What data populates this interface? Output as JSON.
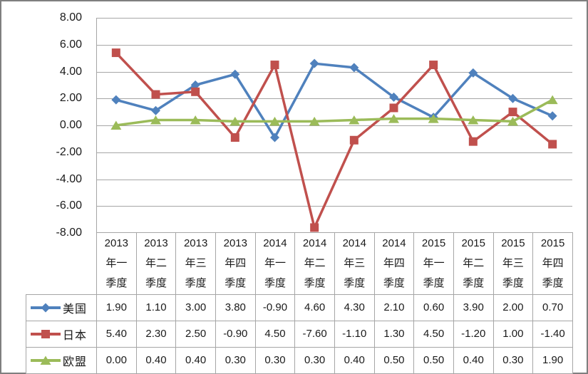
{
  "chart_data": {
    "type": "line",
    "title": "",
    "categories": [
      "2013年一季度",
      "2013年二季度",
      "2013年三季度",
      "2013年四季度",
      "2014年一季度",
      "2014年二季度",
      "2014年三季度",
      "2014年四季度",
      "2015年一季度",
      "2015年二季度",
      "2015年三季度",
      "2015年四季度"
    ],
    "series": [
      {
        "name": "美国",
        "marker": "diamond",
        "color": "#4F81BD",
        "values": [
          1.9,
          1.1,
          3.0,
          3.8,
          -0.9,
          4.6,
          4.3,
          2.1,
          0.6,
          3.9,
          2.0,
          0.7
        ]
      },
      {
        "name": "日本",
        "marker": "square",
        "color": "#C0504D",
        "values": [
          5.4,
          2.3,
          2.5,
          -0.9,
          4.5,
          -7.6,
          -1.1,
          1.3,
          4.5,
          -1.2,
          1.0,
          -1.4
        ]
      },
      {
        "name": "欧盟",
        "marker": "triangle",
        "color": "#9BBB59",
        "values": [
          0.0,
          0.4,
          0.4,
          0.3,
          0.3,
          0.3,
          0.4,
          0.5,
          0.5,
          0.4,
          0.3,
          1.9
        ]
      }
    ],
    "ylim": [
      -8,
      8
    ],
    "yticks": [
      8,
      6,
      4,
      2,
      0,
      -2,
      -4,
      -6,
      -8
    ],
    "ytick_format_decimals": 2,
    "value_format_decimals": 2,
    "grid": true,
    "legend_position": "data-table-left",
    "data_table_shown": true
  },
  "colors": {
    "gridline": "#A6A6A6",
    "axis_line": "#A6A6A6",
    "table_border": "#A6A6A6",
    "frame_border": "#7F7F7F",
    "text": "#1A1A1A"
  }
}
